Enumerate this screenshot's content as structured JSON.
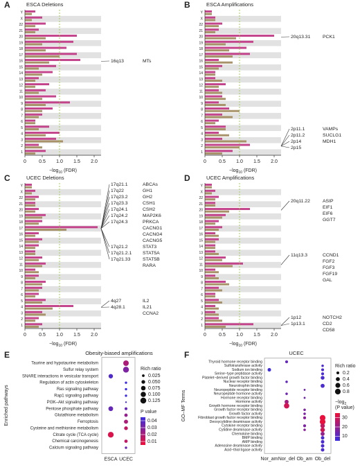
{
  "chart_data": [
    {
      "type": "bar",
      "panel_label": "A",
      "title": "ESCA Deletions",
      "categories": [
        "1",
        "2",
        "3",
        "4",
        "5",
        "6",
        "7",
        "8",
        "9",
        "10",
        "11",
        "12",
        "13",
        "14",
        "15",
        "16",
        "17",
        "18",
        "19",
        "20",
        "21",
        "22",
        "X",
        "Y"
      ],
      "series": [
        {
          "color": "#c4448c",
          "values": [
            0.6,
            0.4,
            0.9,
            1.0,
            0.7,
            0.3,
            0.5,
            0.8,
            1.3,
            0.9,
            0.6,
            0.7,
            0.4,
            0.8,
            0.9,
            1.6,
            1.5,
            1.2,
            1.4,
            1.5,
            0.4,
            0.6,
            0.5,
            0.3
          ]
        },
        {
          "color": "#a8926a",
          "values": [
            0.3,
            0.5,
            1.1,
            0.6,
            0.4,
            0.3,
            0.4,
            0.5,
            0.6,
            0.5,
            0.4,
            0.3,
            0.3,
            0.5,
            0.4,
            0.7,
            1.0,
            0.6,
            0.5,
            0.6,
            0.3,
            0.3,
            0.2,
            0.2
          ]
        }
      ],
      "xlim": [
        0,
        2.2
      ],
      "xticks": [
        0,
        0.5,
        {
          "value": 1,
          "label": "1.0"
        },
        1.5,
        {
          "value": 2,
          "label": "2.0"
        }
      ],
      "reference_line": 1,
      "xlabel": {
        "text": "−log",
        "sub": "10",
        "tail": " (FDR)"
      },
      "annotations": [
        {
          "bands": [
            "16q13"
          ],
          "genes": [
            "MTs"
          ]
        }
      ]
    },
    {
      "type": "bar",
      "panel_label": "B",
      "title": "ESCA Amplifications",
      "categories": [
        "1",
        "2",
        "3",
        "4",
        "5",
        "6",
        "7",
        "8",
        "9",
        "10",
        "11",
        "12",
        "13",
        "14",
        "15",
        "16",
        "17",
        "18",
        "19",
        "20",
        "21",
        "22",
        "X",
        "Y"
      ],
      "series": [
        {
          "color": "#c4448c",
          "values": [
            0.8,
            1.3,
            0.5,
            0.4,
            0.6,
            0.4,
            0.5,
            0.7,
            0.4,
            0.5,
            0.4,
            0.6,
            0.3,
            0.3,
            0.5,
            0.4,
            1.3,
            1.2,
            1.4,
            2.0,
            0.4,
            0.5,
            0.3,
            0.2
          ]
        },
        {
          "color": "#a8926a",
          "values": [
            0.5,
            1.0,
            1.2,
            0.7,
            0.6,
            0.3,
            0.8,
            1.0,
            0.6,
            0.6,
            0.5,
            0.4,
            0.5,
            0.3,
            0.4,
            0.8,
            0.8,
            0.7,
            0.6,
            0.9,
            0.3,
            0.4,
            0.3,
            0.2
          ]
        }
      ],
      "xlim": [
        0,
        2.2
      ],
      "xticks": [
        0,
        0.5,
        {
          "value": 1,
          "label": "1.0"
        },
        1.5,
        {
          "value": 2,
          "label": "2.0"
        }
      ],
      "reference_line": 1,
      "xlabel": {
        "text": "−log",
        "sub": "10",
        "tail": " (FDR)"
      },
      "annotations": [
        {
          "bands": [
            "20q13.31"
          ],
          "genes": [
            "PCK1"
          ]
        },
        {
          "bands": [
            "2p11.1",
            "2p11.2",
            "2p14",
            "2p15"
          ],
          "genes": [
            "VAMPs",
            "SUCLG1",
            "MDH1"
          ]
        }
      ]
    },
    {
      "type": "bar",
      "panel_label": "C",
      "title": "UCEC Deletions",
      "categories": [
        "1",
        "2",
        "3",
        "4",
        "5",
        "6",
        "7",
        "8",
        "9",
        "10",
        "11",
        "12",
        "13",
        "14",
        "15",
        "16",
        "17",
        "18",
        "19",
        "20",
        "21",
        "22",
        "X",
        "Y"
      ],
      "series": [
        {
          "color": "#c4448c",
          "values": [
            0.5,
            0.4,
            0.5,
            1.4,
            0.6,
            0.4,
            0.5,
            0.6,
            0.4,
            0.3,
            0.6,
            0.5,
            0.3,
            0.4,
            0.5,
            0.4,
            2.1,
            0.5,
            0.6,
            0.4,
            0.3,
            0.4,
            0.3,
            0.2
          ]
        },
        {
          "color": "#a8926a",
          "values": [
            0.4,
            0.3,
            0.6,
            0.8,
            0.5,
            0.3,
            0.4,
            0.5,
            0.3,
            0.4,
            0.5,
            0.4,
            0.3,
            0.3,
            0.4,
            0.3,
            1.2,
            0.4,
            0.5,
            0.3,
            0.3,
            0.3,
            0.2,
            0.2
          ]
        }
      ],
      "xlim": [
        0,
        2.2
      ],
      "xticks": [
        0,
        0.5,
        {
          "value": 1,
          "label": "1.0"
        },
        1.5,
        {
          "value": 2,
          "label": "2.0"
        }
      ],
      "reference_line": 1,
      "xlabel": {
        "text": "−log",
        "sub": "10",
        "tail": " (FDR)"
      },
      "annotations": [
        {
          "bands": [
            "17q21.1",
            "17q22",
            "17q23.2",
            "17q23.3",
            "17q24.1",
            "17q24.2",
            "17q24.3"
          ],
          "genes": [
            "ABCAs",
            "GH1",
            "GH2",
            "CSH1",
            "CSH2",
            "MAP2K6",
            "PRKCA",
            "CACNG1",
            "CACNG4",
            "CACNG5"
          ]
        },
        {
          "bands": [
            "17q21.2",
            "17q21.2.1",
            "17q21.33"
          ],
          "genes": [
            "STAT3",
            "STAT5A",
            "STAT5B",
            "RARA"
          ]
        },
        {
          "bands": [
            "4q27",
            "4q28.1"
          ],
          "genes": [
            "IL2",
            "IL21",
            "CCNA2"
          ]
        }
      ]
    },
    {
      "type": "bar",
      "panel_label": "D",
      "title": "UCEC Amplifications",
      "categories": [
        "1",
        "2",
        "3",
        "4",
        "5",
        "6",
        "7",
        "8",
        "9",
        "10",
        "11",
        "12",
        "13",
        "14",
        "15",
        "16",
        "17",
        "18",
        "19",
        "20",
        "21",
        "22",
        "X",
        "Y"
      ],
      "series": [
        {
          "color": "#c4448c",
          "values": [
            1.4,
            0.4,
            0.3,
            0.3,
            0.4,
            0.3,
            0.4,
            0.6,
            0.3,
            0.3,
            1.1,
            0.6,
            0.3,
            0.3,
            0.4,
            0.3,
            0.5,
            0.4,
            0.6,
            1.3,
            0.3,
            0.4,
            0.3,
            0.2
          ]
        },
        {
          "color": "#a8926a",
          "values": [
            0.6,
            0.5,
            0.4,
            0.4,
            0.5,
            0.3,
            0.5,
            0.7,
            0.4,
            0.4,
            0.8,
            0.5,
            0.4,
            0.3,
            0.3,
            0.4,
            0.4,
            0.3,
            0.5,
            0.7,
            0.3,
            0.3,
            0.2,
            0.2
          ]
        }
      ],
      "xlim": [
        0,
        2.2
      ],
      "xticks": [
        0,
        0.5,
        {
          "value": 1,
          "label": "1.0"
        },
        1.5,
        {
          "value": 2,
          "label": "2.0"
        }
      ],
      "reference_line": 1,
      "xlabel": {
        "text": "−log",
        "sub": "10",
        "tail": " (FDR)"
      },
      "annotations": [
        {
          "bands": [
            "20q11.22"
          ],
          "genes": [
            "ASIP",
            "EIF1",
            "EIF6",
            "GGT7"
          ]
        },
        {
          "bands": [
            "11q13.3"
          ],
          "genes": [
            "CCND1",
            "FGF2",
            "FGF3",
            "FGF19",
            "GAL"
          ]
        },
        {
          "bands": [
            "1p12",
            "1p13.1"
          ],
          "genes": [
            "NOTCH2",
            "CD2",
            "CD58"
          ]
        }
      ]
    },
    {
      "type": "bubble",
      "panel_label": "E",
      "title": "Obesity-biased amplifications",
      "ylabel": "Enriched pathways",
      "x_categories": [
        "ESCA",
        "UCEC"
      ],
      "y_categories": [
        "Taurine and hypotaurine metabolism",
        "Sulfur relay system",
        "SNARE interactions in vesicular transport",
        "Regulation of actin cytoskeleton",
        "Ras signaling pathway",
        "Rap1 signaling pathway",
        "PI3K–Akt signaling pathway",
        "Pentose phosphate pathway",
        "Glutathione metabolism",
        "Ferroptosis",
        "Cysteine and methionine metabolism",
        "Citrate cycle (TCA cycle)",
        "Chemical carcinogenesis",
        "Calcium signaling pathway"
      ],
      "points": [
        {
          "x": "UCEC",
          "y": "Taurine and hypotaurine metabolism",
          "size": 0.11,
          "color_value": 0.02
        },
        {
          "x": "UCEC",
          "y": "Sulfur relay system",
          "size": 0.125,
          "color_value": 0.03
        },
        {
          "x": "ESCA",
          "y": "SNARE interactions in vesicular transport",
          "size": 0.07,
          "color_value": 0.04
        },
        {
          "x": "UCEC",
          "y": "Regulation of actin cytoskeleton",
          "size": 0.02,
          "color_value": 0.045
        },
        {
          "x": "UCEC",
          "y": "Ras signaling pathway",
          "size": 0.02,
          "color_value": 0.045
        },
        {
          "x": "UCEC",
          "y": "Rap1 signaling pathway",
          "size": 0.02,
          "color_value": 0.045
        },
        {
          "x": "UCEC",
          "y": "PI3K–Akt signaling pathway",
          "size": 0.01,
          "color_value": 0.045
        },
        {
          "x": "ESCA",
          "y": "Pentose phosphate pathway",
          "size": 0.08,
          "color_value": 0.035
        },
        {
          "x": "UCEC",
          "y": "Pentose phosphate pathway",
          "size": 0.03,
          "color_value": 0.035
        },
        {
          "x": "UCEC",
          "y": "Glutathione metabolism",
          "size": 0.04,
          "color_value": 0.025
        },
        {
          "x": "UCEC",
          "y": "Ferroptosis",
          "size": 0.06,
          "color_value": 0.02
        },
        {
          "x": "UCEC",
          "y": "Cysteine and methionine metabolism",
          "size": 0.05,
          "color_value": 0.015
        },
        {
          "x": "ESCA",
          "y": "Citrate cycle (TCA cycle)",
          "size": 0.12,
          "color_value": 0.01
        },
        {
          "x": "UCEC",
          "y": "Chemical carcinogenesis",
          "size": 0.04,
          "color_value": 0.015
        },
        {
          "x": "UCEC",
          "y": "Calcium signaling pathway",
          "size": 0.02,
          "color_value": 0.035
        }
      ],
      "size_legend": {
        "title": "Rich ratio",
        "ticks": [
          0.025,
          {
            "value": 0.05,
            "label": "0.050"
          },
          0.075,
          {
            "value": 0.1,
            "label": "0.100"
          },
          0.125
        ]
      },
      "color_legend": {
        "title_lines": [
          {
            "text": "P value"
          }
        ],
        "lim": [
          0.005,
          0.045
        ],
        "ticks": [
          0.01,
          0.02,
          0.03,
          0.04
        ],
        "colors": [
          "#ee1038",
          "#3a2ee0"
        ]
      }
    },
    {
      "type": "bubble",
      "panel_label": "F",
      "title": "UCEC",
      "ylabel": "GO–MF Terms",
      "x_categories": [
        "Nor_am",
        "Nor_del",
        "Ob_am",
        "Ob_del"
      ],
      "y_categories": [
        "Thyroid hormone receptor binding",
        "Sulfotransferase activity",
        "Sodium ion binding",
        "Serine−type peptidase activity",
        "Platelet−derived growth factor binding",
        "Nuclear receptor binding",
        "Neurotrophin binding",
        "Neuropeptide receptor binding",
        "Neuropeptide hormone activity",
        "Hormone receptor binding",
        "Hormone activity",
        "Growth hormone receptor binding",
        "Growth factor receptor binding",
        "Growth factor activity",
        "Fibroblast growth factor receptor binding",
        "Deoxycytidine deaminase activity",
        "Cytokine receptor binding",
        "Cytidine deaminase activity",
        "Chemokine binding",
        "BMP binding",
        "AMP binding",
        "Adenosine deaminase activity",
        "Acid−thiol ligase activity"
      ],
      "points": [
        {
          "x": "Nor_del",
          "y": "Thyroid hormone receptor binding",
          "size": 0.2,
          "color_value": 12
        },
        {
          "x": "Ob_del",
          "y": "Sulfotransferase activity",
          "size": 0.15,
          "color_value": 8
        },
        {
          "x": "Nor_am",
          "y": "Sodium ion binding",
          "size": 0.3,
          "color_value": 6
        },
        {
          "x": "Ob_del",
          "y": "Sodium ion binding",
          "size": 0.2,
          "color_value": 8
        },
        {
          "x": "Ob_del",
          "y": "Serine−type peptidase activity",
          "size": 0.2,
          "color_value": 8
        },
        {
          "x": "Ob_del",
          "y": "Platelet−derived growth factor binding",
          "size": 0.35,
          "color_value": 8
        },
        {
          "x": "Nor_del",
          "y": "Nuclear receptor binding",
          "size": 0.15,
          "color_value": 12
        },
        {
          "x": "Ob_del",
          "y": "Neurotrophin binding",
          "size": 0.4,
          "color_value": 8
        },
        {
          "x": "Ob_am",
          "y": "Neuropeptide receptor binding",
          "size": 0.1,
          "color_value": 14
        },
        {
          "x": "Nor_del",
          "y": "Neuropeptide hormone activity",
          "size": 0.15,
          "color_value": 14
        },
        {
          "x": "Ob_am",
          "y": "Hormone receptor binding",
          "size": 0.1,
          "color_value": 14
        },
        {
          "x": "Nor_del",
          "y": "Hormone activity",
          "size": 0.4,
          "color_value": 22
        },
        {
          "x": "Nor_del",
          "y": "Growth hormone receptor binding",
          "size": 0.7,
          "color_value": 30
        },
        {
          "x": "Ob_am",
          "y": "Growth factor receptor binding",
          "size": 0.15,
          "color_value": 16
        },
        {
          "x": "Ob_am",
          "y": "Growth factor activity",
          "size": 0.15,
          "color_value": 16
        },
        {
          "x": "Ob_am",
          "y": "Fibroblast growth factor receptor binding",
          "size": 0.2,
          "color_value": 18
        },
        {
          "x": "Ob_del",
          "y": "Fibroblast growth factor receptor binding",
          "size": 0.8,
          "color_value": 34
        },
        {
          "x": "Ob_del",
          "y": "Deoxycytidine deaminase activity",
          "size": 0.8,
          "color_value": 34
        },
        {
          "x": "Ob_am",
          "y": "Cytokine receptor binding",
          "size": 0.2,
          "color_value": 16
        },
        {
          "x": "Ob_del",
          "y": "Cytokine receptor binding",
          "size": 0.5,
          "color_value": 28
        },
        {
          "x": "Ob_am",
          "y": "Cytidine deaminase activity",
          "size": 0.15,
          "color_value": 18
        },
        {
          "x": "Ob_del",
          "y": "Cytidine deaminase activity",
          "size": 0.5,
          "color_value": 30
        },
        {
          "x": "Ob_del",
          "y": "Chemokine binding",
          "size": 0.4,
          "color_value": 20
        },
        {
          "x": "Ob_del",
          "y": "BMP binding",
          "size": 0.3,
          "color_value": 8
        },
        {
          "x": "Ob_del",
          "y": "AMP binding",
          "size": 0.3,
          "color_value": 8
        },
        {
          "x": "Ob_del",
          "y": "Adenosine deaminase activity",
          "size": 0.3,
          "color_value": 8
        },
        {
          "x": "Ob_del",
          "y": "Acid−thiol ligase activity",
          "size": 0.3,
          "color_value": 8
        }
      ],
      "size_legend": {
        "title": "Rich ratio",
        "ticks": [
          0.2,
          0.4,
          0.6,
          0.8
        ]
      },
      "color_legend": {
        "title_lines": [
          {
            "text": "−log",
            "sub": "2"
          },
          {
            "text": "(P value)"
          }
        ],
        "lim": [
          5,
          35
        ],
        "ticks": [
          10,
          20,
          30
        ],
        "colors": [
          "#3a2ee0",
          "#ee1038"
        ]
      }
    }
  ]
}
